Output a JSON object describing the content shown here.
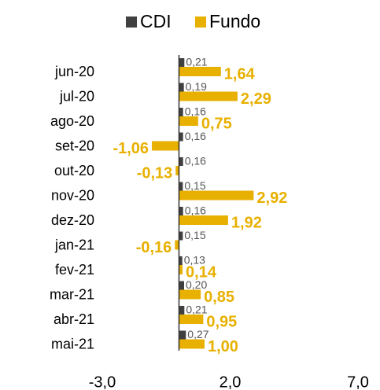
{
  "chart_data": {
    "type": "bar",
    "orientation": "horizontal",
    "legend": "top",
    "categories": [
      "jun-20",
      "jul-20",
      "ago-20",
      "set-20",
      "out-20",
      "nov-20",
      "dez-20",
      "jan-21",
      "fev-21",
      "mar-21",
      "abr-21",
      "mai-21"
    ],
    "series": [
      {
        "name": "CDI",
        "color": "#404040",
        "values": [
          0.21,
          0.19,
          0.16,
          0.16,
          0.16,
          0.15,
          0.16,
          0.15,
          0.13,
          0.2,
          0.21,
          0.27
        ],
        "value_labels": [
          "0,21",
          "0,19",
          "0,16",
          "0,16",
          "0,16",
          "0,15",
          "0,16",
          "0,15",
          "0,13",
          "0,20",
          "0,21",
          "0,27"
        ]
      },
      {
        "name": "Fundo",
        "color": "#e8b000",
        "values": [
          1.64,
          2.29,
          0.75,
          -1.06,
          -0.13,
          2.92,
          1.92,
          -0.16,
          0.14,
          0.85,
          0.95,
          1.0
        ],
        "value_labels": [
          "1,64",
          "2,29",
          "0,75",
          "-1,06",
          "-0,13",
          "2,92",
          "1,92",
          "-0,16",
          "0,14",
          "0,85",
          "0,95",
          "1,00"
        ]
      }
    ],
    "xlim": [
      -3,
      7
    ],
    "xticks": [
      {
        "value": -3,
        "label": "-3,0"
      },
      {
        "value": 2,
        "label": "2,0"
      },
      {
        "value": 7,
        "label": "7,0"
      }
    ]
  }
}
